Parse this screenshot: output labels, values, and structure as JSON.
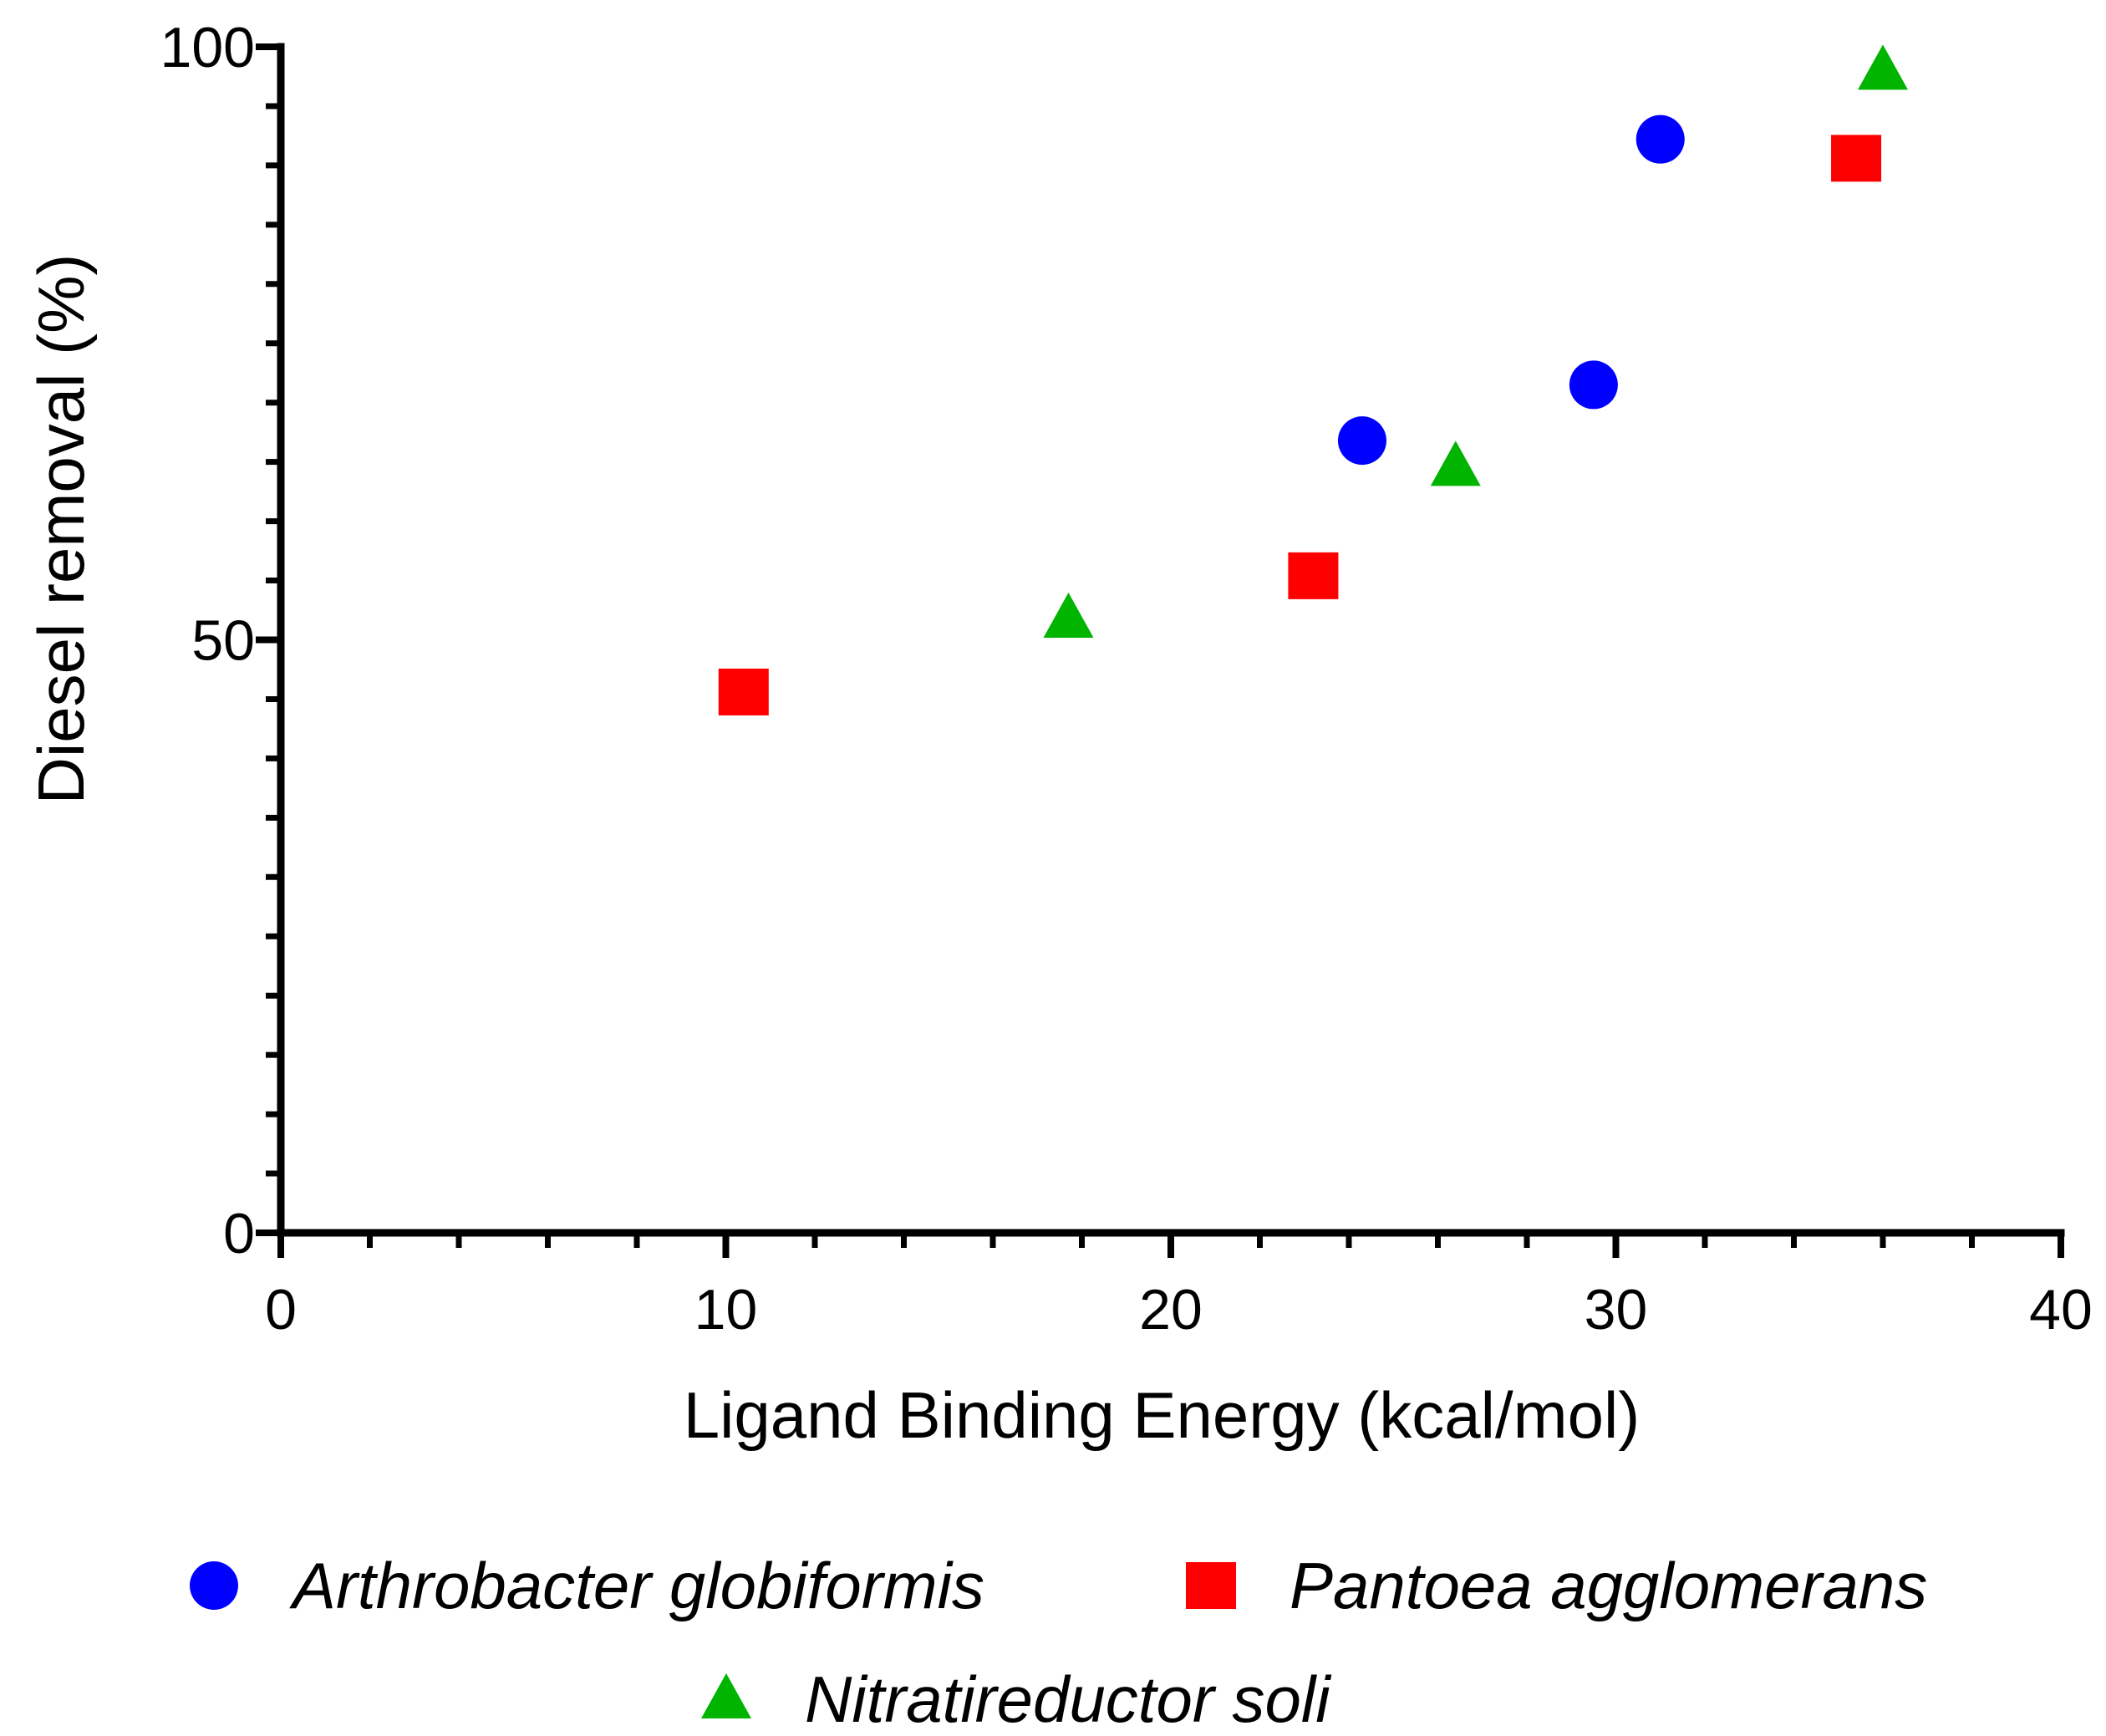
{
  "chart_data": {
    "type": "scatter",
    "title": "",
    "xlabel": "Ligand Binding Energy (kcal/mol)",
    "ylabel": "Diesel removal (%)",
    "xlim": [
      0,
      40
    ],
    "ylim": [
      0,
      100
    ],
    "x_ticks": [
      "0",
      "10",
      "20",
      "30",
      "40"
    ],
    "y_ticks": [
      "0",
      "50",
      "100"
    ],
    "grid": false,
    "legend_position": "bottom",
    "series": [
      {
        "name": "Arthrobacter globiformis",
        "marker": "circle",
        "color": "#0000ff",
        "points": [
          {
            "x": 24.3,
            "y": 66.8
          },
          {
            "x": 29.5,
            "y": 71.5
          },
          {
            "x": 31.0,
            "y": 92.2
          }
        ]
      },
      {
        "name": "Pantoea agglomerans",
        "marker": "square",
        "color": "#ff0000",
        "points": [
          {
            "x": 10.4,
            "y": 45.6
          },
          {
            "x": 23.2,
            "y": 55.4
          },
          {
            "x": 35.4,
            "y": 90.6
          }
        ]
      },
      {
        "name": "Nitratireductor soli",
        "marker": "triangle",
        "color": "#00b400",
        "points": [
          {
            "x": 17.7,
            "y": 51.8
          },
          {
            "x": 26.4,
            "y": 64.6
          },
          {
            "x": 36.0,
            "y": 98.0
          }
        ]
      }
    ]
  }
}
